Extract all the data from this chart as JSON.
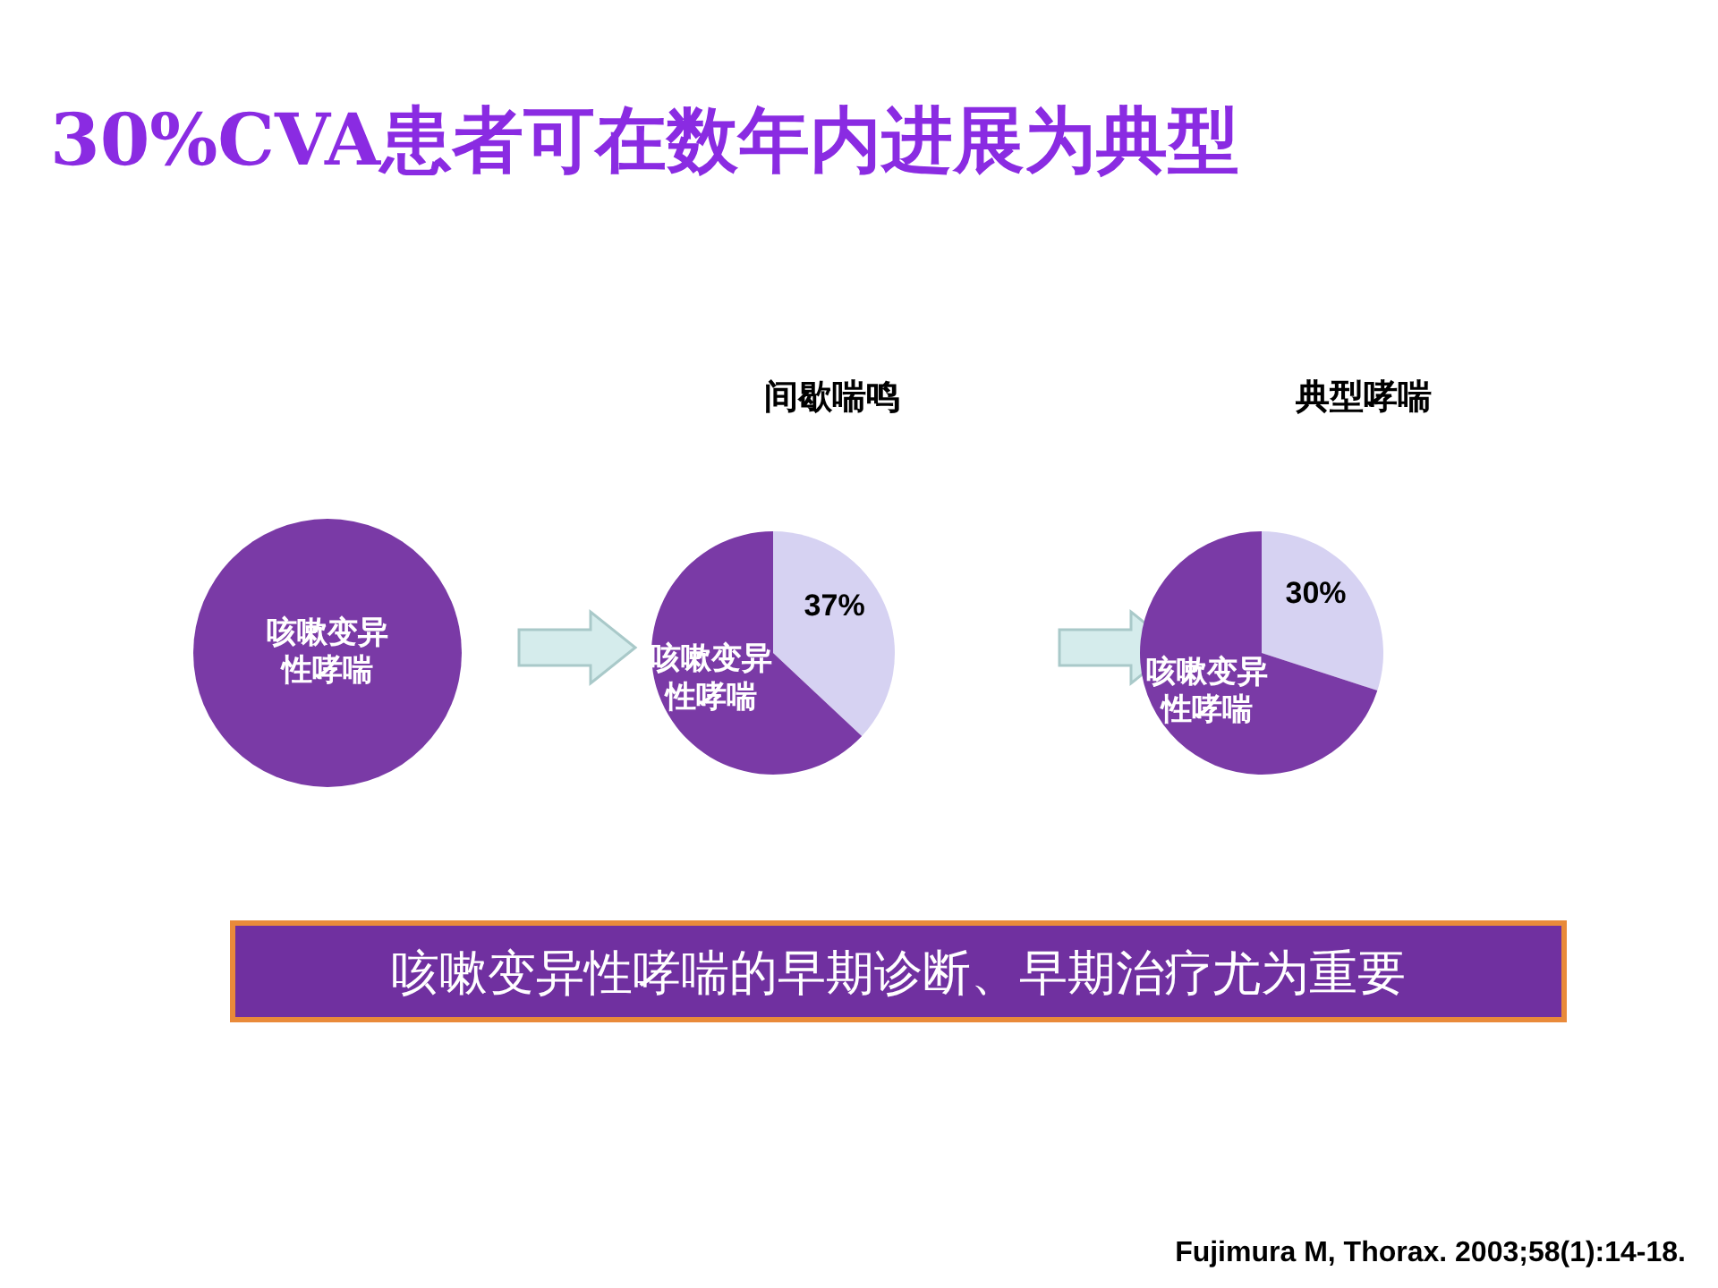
{
  "chart_data": [
    {
      "type": "pie",
      "title": "30%CVA患者可在数年内进展为典型",
      "categories": [
        "咳嗽变异性哮喘"
      ],
      "values": [
        100
      ],
      "colors": [
        "#7a3aa6"
      ]
    },
    {
      "type": "pie",
      "title": "间歇喘鸣",
      "categories": [
        null,
        "咳嗽变异性哮喘"
      ],
      "values": [
        37,
        63
      ],
      "colors": [
        "#d6d2f2",
        "#7a3aa6"
      ],
      "value_labels": [
        "37%",
        null
      ]
    },
    {
      "type": "pie",
      "title": "典型哮喘",
      "categories": [
        null,
        "咳嗽变异性哮喘"
      ],
      "values": [
        30,
        70
      ],
      "colors": [
        "#d6d2f2",
        "#7a3aa6"
      ],
      "value_labels": [
        "30%",
        null
      ],
      "annotations": [
        "咳嗽变异性哮喘的早期诊断、早期治疗尤为重要",
        "Fujimura M, Thorax. 2003;58(1):14-18."
      ]
    }
  ]
}
